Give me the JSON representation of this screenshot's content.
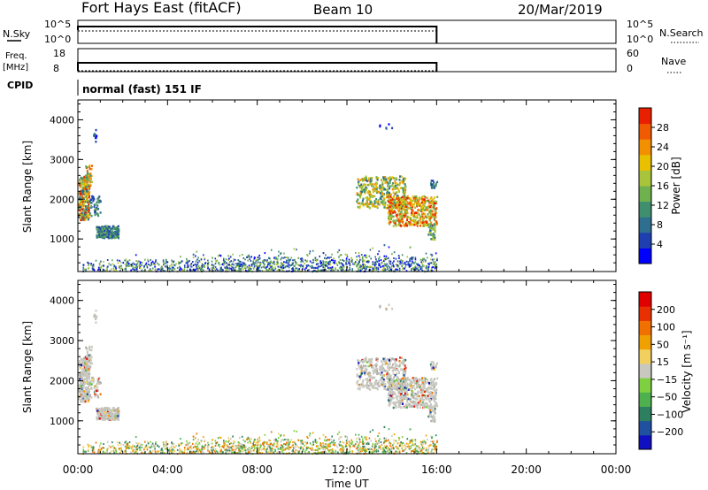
{
  "header": {
    "station": "Fort Hays East (fitACF)",
    "beam": "Beam 10",
    "date": "20/Mar/2019"
  },
  "top_panels": {
    "nsky_label": "N.Sky",
    "nsky_ticks": [
      "10^5",
      "10^0"
    ],
    "nsearch_label": "N.Search",
    "nsearch_ticks": [
      "10^5",
      "10^0"
    ],
    "freq_label_1": "Freq.",
    "freq_label_2": "[MHz]",
    "freq_ticks": [
      "18",
      "8"
    ],
    "nave_label": "Nave",
    "nave_ticks": [
      "60",
      "0"
    ],
    "cpid_label": "CPID",
    "cpid_text": "normal (fast) 151 IF"
  },
  "chart_data": [
    {
      "type": "heatmap",
      "name": "power",
      "ylabel": "Slant Range [km]",
      "yticks": [
        "4000",
        "3000",
        "2000",
        "1000"
      ],
      "ylim": [
        180,
        4500
      ],
      "xlim": [
        0,
        24
      ],
      "colorbar_label": "Power [dB]",
      "colorbar_ticks": [
        "28",
        "24",
        "20",
        "16",
        "12",
        "8",
        "4"
      ],
      "colorbar_colors": [
        "#0000ff",
        "#1f3fb0",
        "#2e6e8e",
        "#3f8f6f",
        "#6fb04f",
        "#a8c43a",
        "#e8c000",
        "#f29000",
        "#f05a00",
        "#e82000"
      ],
      "colorbar_range": [
        0,
        32
      ]
    },
    {
      "type": "heatmap",
      "name": "velocity",
      "ylabel": "Slant Range [km]",
      "yticks": [
        "4000",
        "3000",
        "2000",
        "1000"
      ],
      "ylim": [
        180,
        4500
      ],
      "xlim": [
        0,
        24
      ],
      "colorbar_label": "Velocity [m s⁻¹]",
      "colorbar_ticks": [
        "200",
        "100",
        "50",
        "15",
        "−15",
        "−50",
        "−100",
        "−200"
      ],
      "colorbar_colors": [
        "#1010c0",
        "#2050a0",
        "#2e7f5f",
        "#4fb04f",
        "#7fd040",
        "#c8c8c0",
        "#f2d060",
        "#f0a000",
        "#f07000",
        "#e83000",
        "#e00000"
      ],
      "xlabel": "Time UT",
      "xticks": [
        "00:00",
        "04:00",
        "08:00",
        "12:00",
        "16:00",
        "20:00",
        "00:00"
      ]
    }
  ],
  "data_end_hour": 16
}
